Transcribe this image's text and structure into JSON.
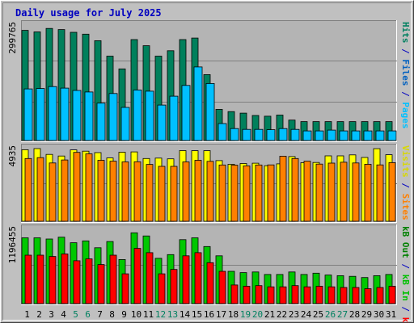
{
  "chart_data": {
    "type": "bar",
    "title": "Daily usage for July 2025",
    "categories": [
      "1",
      "2",
      "3",
      "4",
      "5",
      "6",
      "7",
      "8",
      "9",
      "10",
      "11",
      "12",
      "13",
      "14",
      "15",
      "16",
      "17",
      "18",
      "19",
      "20",
      "21",
      "22",
      "23",
      "24",
      "25",
      "26",
      "27",
      "28",
      "29",
      "30",
      "31"
    ],
    "weekend_days": [
      "5",
      "6",
      "12",
      "13",
      "19",
      "20",
      "26",
      "27"
    ],
    "panels": [
      {
        "id": "hits",
        "ylabel_max": "299765",
        "ylim": [
          0,
          299765
        ],
        "series": [
          {
            "name": "Hits",
            "color": "#00805c",
            "values": [
              286000,
              282000,
              291000,
              288000,
              281000,
              276000,
              259000,
              219000,
              186000,
              262000,
              246000,
              219000,
              233000,
              262000,
              266000,
              171000,
              81000,
              75000,
              71000,
              65000,
              63000,
              66000,
              53000,
              49000,
              49000,
              49000,
              49000,
              49000,
              49000,
              49000,
              49000
            ]
          },
          {
            "name": "Files",
            "color": "#00c0ff",
            "values": [
              134000,
              135000,
              140000,
              136000,
              130000,
              126000,
              97000,
              122000,
              86000,
              131000,
              128000,
              92000,
              115000,
              143000,
              191000,
              148000,
              44000,
              31000,
              29000,
              29000,
              28000,
              31000,
              29000,
              25000,
              25000,
              27000,
              25000,
              25000,
              25000,
              25000,
              25000
            ]
          },
          {
            "name": "Pages",
            "color": "#00c0ff",
            "values": [
              130000,
              131000,
              138000,
              133000,
              127000,
              122000,
              92000,
              119000,
              82000,
              126000,
              124000,
              88000,
              110000,
              135000,
              166000,
              135000,
              40000,
              27000,
              24000,
              24000,
              24000,
              26000,
              24000,
              21000,
              21000,
              23000,
              21000,
              21000,
              21000,
              21000,
              21000
            ]
          }
        ]
      },
      {
        "id": "visits",
        "ylabel_max": "4935",
        "ylim": [
          0,
          4935
        ],
        "series": [
          {
            "name": "Visits",
            "color": "#ffff00",
            "values": [
              4860,
              4935,
              4540,
              4430,
              4850,
              4760,
              4660,
              4300,
              4690,
              4710,
              4260,
              4290,
              4240,
              4800,
              4790,
              4790,
              4120,
              3870,
              3920,
              3940,
              3770,
              3900,
              4390,
              3980,
              3990,
              4440,
              4440,
              4510,
              4330,
              4930,
              4520
            ]
          },
          {
            "name": "Sites",
            "color": "#ff8000",
            "values": [
              4260,
              4320,
              3960,
              4160,
              4680,
              4580,
              4140,
              4080,
              4030,
              4040,
              3860,
              3730,
              3730,
              4030,
              4140,
              4070,
              3820,
              3810,
              3760,
              3820,
              3830,
              4420,
              4260,
              4080,
              3880,
              3950,
              4010,
              3960,
              3870,
              3830,
              3980
            ]
          }
        ]
      },
      {
        "id": "kbytes",
        "ylabel_max": "1196455",
        "ylim": [
          0,
          1196455
        ],
        "series": [
          {
            "name": "KBytes In",
            "color": "#00c800",
            "values": [
              1060000,
              1060000,
              1040000,
              1070000,
              980000,
              1010000,
              900000,
              1000000,
              710000,
              1140000,
              1090000,
              730000,
              790000,
              1030000,
              1060000,
              920000,
              770000,
              520000,
              500000,
              510000,
              470000,
              470000,
              510000,
              470000,
              490000,
              460000,
              450000,
              440000,
              420000,
              450000,
              470000
            ]
          },
          {
            "name": "KBytes Out",
            "color": "#ff0000",
            "values": [
              780000,
              780000,
              760000,
              800000,
              690000,
              720000,
              630000,
              780000,
              480000,
              890000,
              820000,
              480000,
              550000,
              770000,
              820000,
              660000,
              520000,
              300000,
              280000,
              290000,
              270000,
              270000,
              290000,
              270000,
              280000,
              270000,
              260000,
              260000,
              240000,
              260000,
              280000
            ]
          }
        ]
      }
    ],
    "side_labels": [
      {
        "panel": "hits",
        "parts": [
          {
            "text": "Pages",
            "color": "#00c0ff"
          },
          {
            "text": " / ",
            "color": "#0000c0"
          },
          {
            "text": "Files",
            "color": "#0060c0"
          },
          {
            "text": " / ",
            "color": "#0000c0"
          },
          {
            "text": "Hits",
            "color": "#008060"
          }
        ]
      },
      {
        "panel": "visits",
        "parts": [
          {
            "text": "Sites",
            "color": "#ff8000"
          },
          {
            "text": " / ",
            "color": "#0000c0"
          },
          {
            "text": "Visits",
            "color": "#d8d800"
          }
        ]
      },
      {
        "panel": "kbytes",
        "parts": [
          {
            "text": "kB F",
            "color": "#ff0000"
          },
          {
            "text": " / ",
            "color": "#0000c0"
          },
          {
            "text": "kB In",
            "color": "#00c000"
          },
          {
            "text": " / ",
            "color": "#0000c0"
          },
          {
            "text": "kB Out",
            "color": "#008000"
          }
        ]
      }
    ],
    "colors": {
      "title": "#0000c0",
      "background": "#c0c0c0",
      "plot_area": "#b4b4b4",
      "grid": "#808080",
      "weekday_label": "#000000",
      "weekend_label": "#008060"
    },
    "grid": true
  }
}
